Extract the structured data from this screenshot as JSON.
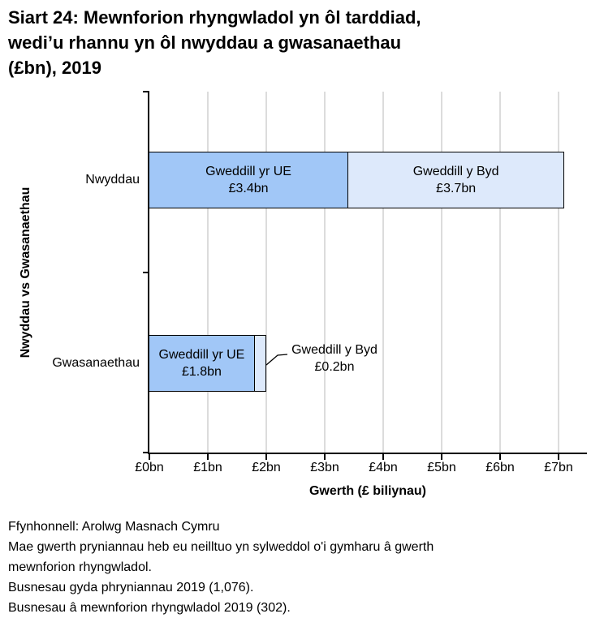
{
  "title": {
    "lines": [
      "Siart 24: Mewnforion rhyngwladol yn ôl tarddiad,",
      "wedi’u rhannu yn ôl nwyddau a gwasanaethau",
      "(£bn), 2019"
    ]
  },
  "chart_data": {
    "type": "bar",
    "orientation": "horizontal",
    "stacked": true,
    "title": "Siart 24: Mewnforion rhyngwladol yn ôl tarddiad, wedi’u rhannu yn ôl nwyddau a gwasanaethau (£bn), 2019",
    "categories": [
      "Nwyddau",
      "Gwasanaethau"
    ],
    "series": [
      {
        "name": "Gweddill yr UE",
        "values": [
          3.4,
          1.8
        ],
        "value_labels": [
          "£3.4bn",
          "£1.8bn"
        ],
        "color": "#A1C7F7"
      },
      {
        "name": "Gweddill y Byd",
        "values": [
          3.7,
          0.2
        ],
        "value_labels": [
          "£3.7bn",
          "£0.2bn"
        ],
        "color": "#DDE9FB"
      }
    ],
    "xlabel": "Gwerth (£ biliynau)",
    "ylabel": "Nwyddau vs Gwasanaethau",
    "xlim": [
      0,
      7.5
    ],
    "x_ticks": [
      0,
      1,
      2,
      3,
      4,
      5,
      6,
      7
    ],
    "x_tick_labels": [
      "£0bn",
      "£1bn",
      "£2bn",
      "£3bn",
      "£4bn",
      "£5bn",
      "£6bn",
      "£7bn"
    ],
    "grid": "vertical-light-gray",
    "gridline_color": "#DCDCDC",
    "annotation": {
      "line1": "Gweddill y Byd",
      "line2": "£0.2bn",
      "points_to": "Gwasanaethau — Gweddill y Byd segment"
    }
  },
  "footer": {
    "lines": [
      "Ffynhonnell: Arolwg Masnach Cymru",
      "Mae gwerth pryniannau heb eu neilltuo yn sylweddol o'i gymharu â gwerth",
      "mewnforion rhyngwladol.",
      "Busnesau gyda phryniannau 2019 (1,076).",
      "Busnesau â mewnforion rhyngwladol 2019 (302)."
    ]
  }
}
